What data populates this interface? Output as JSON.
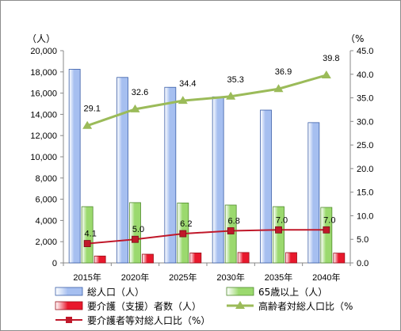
{
  "chart_data": {
    "type": "bar",
    "categories": [
      "2015年",
      "2020年",
      "2025年",
      "2030年",
      "2035年",
      "2040年"
    ],
    "left_axis": {
      "unit_label": "（人）",
      "ylim": [
        0,
        20000
      ],
      "ticks": [
        "0",
        "2,000",
        "4,000",
        "6,000",
        "8,000",
        "10,000",
        "12,000",
        "14,000",
        "16,000",
        "18,000",
        "20,000"
      ]
    },
    "right_axis": {
      "unit_label": "（%",
      "ylim": [
        0,
        45
      ],
      "ticks": [
        "0.0",
        "5.0",
        "10.0",
        "15.0",
        "20.0",
        "25.0",
        "30.0",
        "35.0",
        "40.0",
        "45.0"
      ]
    },
    "series": [
      {
        "name": "総人口（人）",
        "type": "bar",
        "axis": "left",
        "color": "#a6bff0",
        "edge": "#3b5fa8",
        "values": [
          18250,
          17480,
          16550,
          15650,
          14400,
          13220
        ]
      },
      {
        "name": "65歳以上（人）",
        "type": "bar",
        "axis": "left",
        "color": "#9bd96e",
        "edge": "#4f8a2c",
        "values": [
          5300,
          5680,
          5650,
          5450,
          5300,
          5230
        ]
      },
      {
        "name": "要介護（支援）者数（人）",
        "type": "bar",
        "axis": "left",
        "color": "#e8182c",
        "edge": "#9a0d18",
        "values": [
          650,
          820,
          940,
          980,
          970,
          920
        ]
      },
      {
        "name": "高齢者対総人口比（%",
        "type": "line",
        "axis": "right",
        "color": "#9bbb59",
        "values": [
          29.1,
          32.6,
          34.4,
          35.3,
          36.9,
          39.8
        ],
        "labels": [
          "29.1",
          "32.6",
          "34.4",
          "35.3",
          "36.9",
          "39.8"
        ]
      },
      {
        "name": "要介護者等対総人口比（%）",
        "type": "line",
        "axis": "right",
        "color": "#c0182a",
        "values": [
          4.1,
          5.0,
          6.2,
          6.8,
          7.0,
          7.0
        ],
        "labels": [
          "4.1",
          "5.0",
          "6.2",
          "6.8",
          "7.0",
          "7.0"
        ]
      }
    ],
    "grid": false,
    "legend_position": "bottom"
  }
}
